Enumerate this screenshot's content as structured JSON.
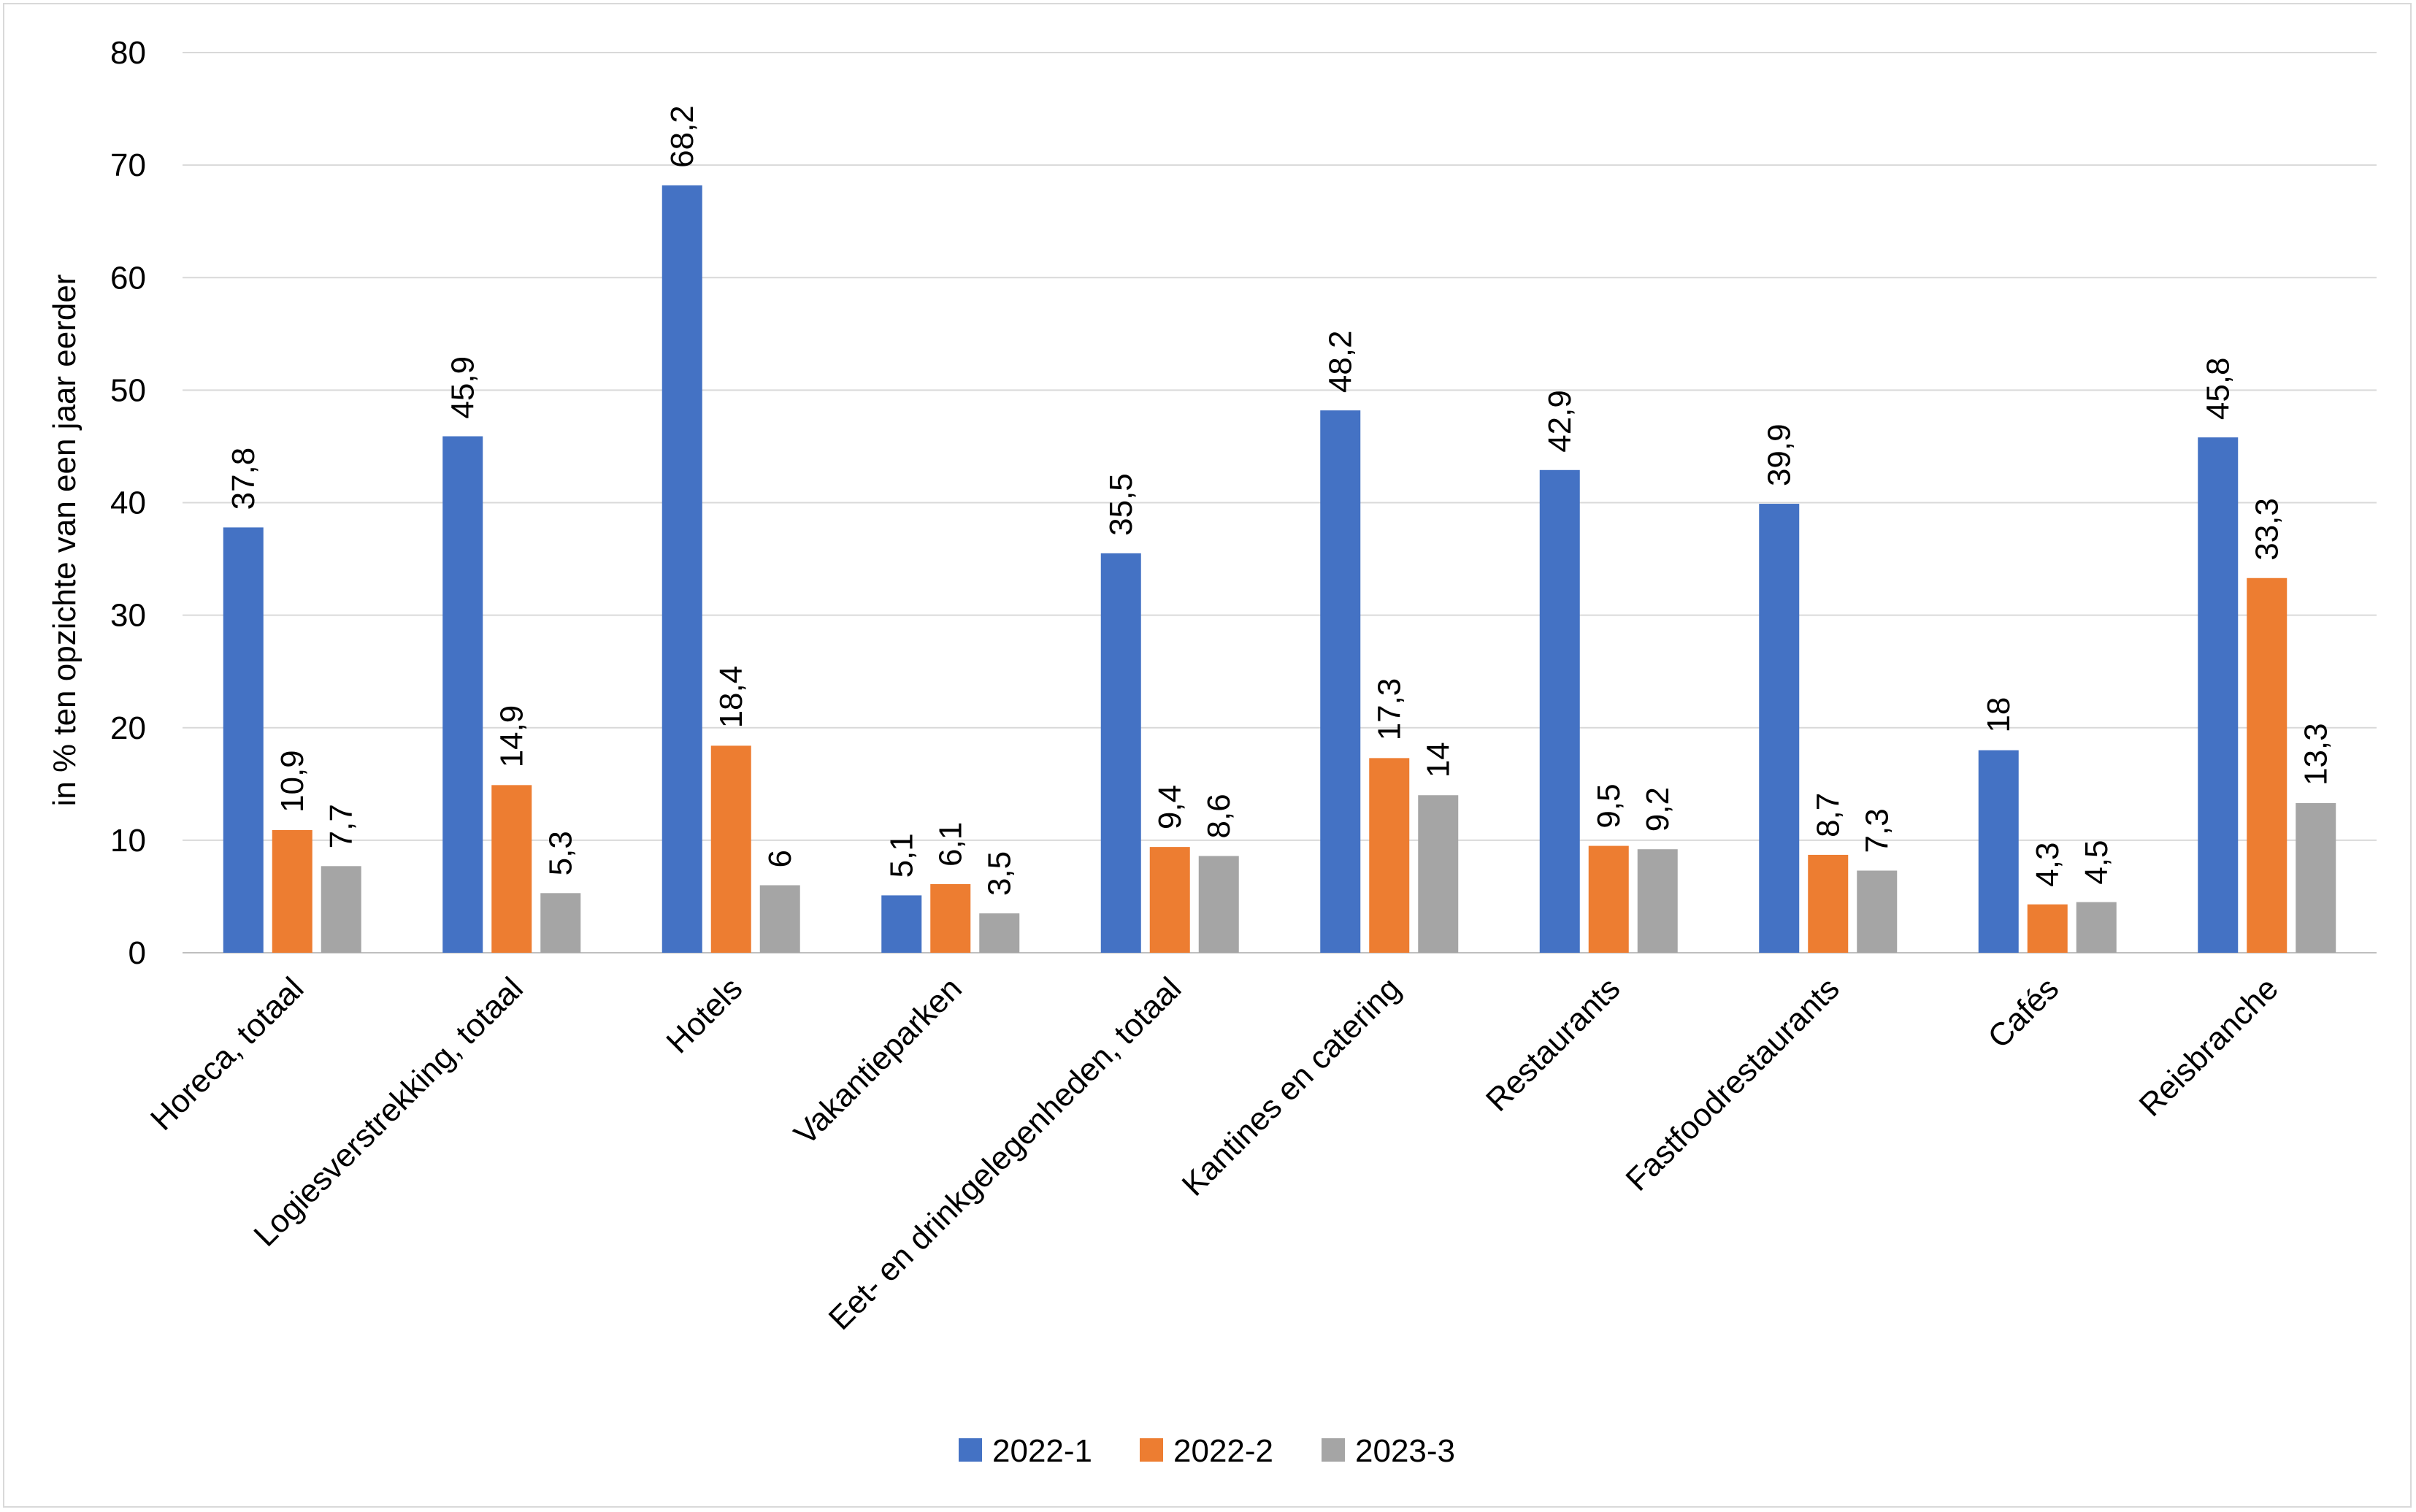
{
  "chart_data": {
    "type": "bar",
    "title": "",
    "xlabel": "",
    "ylabel": "in % ten opzichte van een jaar eerder",
    "ylim": [
      0,
      80
    ],
    "yticks": [
      0,
      10,
      20,
      30,
      40,
      50,
      60,
      70,
      80
    ],
    "grid": true,
    "legend_position": "bottom",
    "categories": [
      "Horeca, totaal",
      "Logiesverstrekking, totaal",
      "Hotels",
      "Vakantieparken",
      "Eet- en drinkgelegenheden, totaal",
      "Kantines en catering",
      "Restaurants",
      "Fastfoodrestaurants",
      "Cafés",
      "Reisbranche"
    ],
    "series": [
      {
        "name": "2022-1",
        "color": "#4472c4",
        "values": [
          37.8,
          45.9,
          68.2,
          5.1,
          35.5,
          48.2,
          42.9,
          39.9,
          18,
          45.8
        ],
        "labels": [
          "37,8",
          "45,9",
          "68,2",
          "5,1",
          "35,5",
          "48,2",
          "42,9",
          "39,9",
          "18",
          "45,8"
        ]
      },
      {
        "name": "2022-2",
        "color": "#ed7d31",
        "values": [
          10.9,
          14.9,
          18.4,
          6.1,
          9.4,
          17.3,
          9.5,
          8.7,
          4.3,
          33.3
        ],
        "labels": [
          "10,9",
          "14,9",
          "18,4",
          "6,1",
          "9,4",
          "17,3",
          "9,5",
          "8,7",
          "4,3",
          "33,3"
        ]
      },
      {
        "name": "2023-3",
        "color": "#a5a5a5",
        "values": [
          7.7,
          5.3,
          6,
          3.5,
          8.6,
          14,
          9.2,
          7.3,
          4.5,
          13.3
        ],
        "labels": [
          "7,7",
          "5,3",
          "6",
          "3,5",
          "8,6",
          "14",
          "9,2",
          "7,3",
          "4,5",
          "13,3"
        ]
      }
    ]
  }
}
